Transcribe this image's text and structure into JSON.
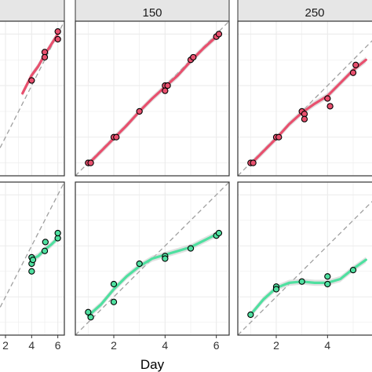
{
  "chart_data": {
    "type": "scatter",
    "xlabel": "Day",
    "x_ticks": [
      2,
      4,
      6
    ],
    "colors": {
      "red_series": "#e8506e",
      "green_series": "#4fe0a0",
      "strip_bg": "#e6e6e6",
      "reference_line": "#a0a0a0",
      "grid": "#ebebeb",
      "ribbon": "#c8c8c8"
    },
    "panels": [
      {
        "row": 0,
        "col": 0,
        "strip": "",
        "color_key": "red_series",
        "xlim": [
          0.5,
          6.5
        ],
        "ylim": [
          0.5,
          6.5
        ],
        "points": [
          [
            4,
            4.2
          ],
          [
            5,
            5.3
          ],
          [
            5,
            5.1
          ],
          [
            6,
            6.1
          ],
          [
            6,
            5.8
          ]
        ],
        "smooth": [
          [
            3.3,
            3.7
          ],
          [
            4,
            4.4
          ],
          [
            4.5,
            4.75
          ],
          [
            5,
            5.2
          ],
          [
            5.5,
            5.6
          ],
          [
            6,
            6.0
          ]
        ]
      },
      {
        "row": 0,
        "col": 1,
        "strip": "150",
        "color_key": "red_series",
        "xlim": [
          0.5,
          6.5
        ],
        "ylim": [
          0.5,
          6.5
        ],
        "points": [
          [
            1,
            1.0
          ],
          [
            1.1,
            1.0
          ],
          [
            2,
            2.0
          ],
          [
            2.1,
            2.0
          ],
          [
            3,
            3.0
          ],
          [
            4,
            4.0
          ],
          [
            4.1,
            4.0
          ],
          [
            4,
            3.8
          ],
          [
            5,
            5.0
          ],
          [
            5.1,
            5.1
          ],
          [
            6,
            5.9
          ],
          [
            6.1,
            6.0
          ]
        ],
        "smooth": [
          [
            1,
            0.95
          ],
          [
            1.5,
            1.45
          ],
          [
            2,
            1.95
          ],
          [
            2.5,
            2.45
          ],
          [
            3,
            3.0
          ],
          [
            3.5,
            3.5
          ],
          [
            4,
            3.95
          ],
          [
            4.5,
            4.4
          ],
          [
            5,
            4.95
          ],
          [
            5.5,
            5.45
          ],
          [
            6,
            5.9
          ]
        ]
      },
      {
        "row": 0,
        "col": 2,
        "strip": "250",
        "color_key": "red_series",
        "xlim": [
          0.5,
          6.5
        ],
        "ylim": [
          0.5,
          6.5
        ],
        "points": [
          [
            1,
            1.0
          ],
          [
            1.1,
            1.0
          ],
          [
            2,
            2.0
          ],
          [
            2.1,
            2.0
          ],
          [
            3,
            3.0
          ],
          [
            3.1,
            2.9
          ],
          [
            3.1,
            2.7
          ],
          [
            4,
            3.5
          ],
          [
            4.1,
            3.2
          ],
          [
            5,
            4.5
          ],
          [
            5.1,
            4.8
          ]
        ],
        "smooth": [
          [
            1,
            0.95
          ],
          [
            1.5,
            1.45
          ],
          [
            2,
            1.95
          ],
          [
            2.5,
            2.5
          ],
          [
            3,
            2.95
          ],
          [
            3.5,
            3.3
          ],
          [
            4,
            3.6
          ],
          [
            4.5,
            4.1
          ],
          [
            5,
            4.6
          ],
          [
            5.5,
            5.0
          ]
        ]
      },
      {
        "row": 1,
        "col": 0,
        "strip": "",
        "color_key": "green_series",
        "xlim": [
          0.5,
          6.5
        ],
        "ylim": [
          0.5,
          6.5
        ],
        "points": [
          [
            4,
            3.55
          ],
          [
            4,
            3.3
          ],
          [
            4,
            3.0
          ],
          [
            4.1,
            3.45
          ],
          [
            5,
            3.8
          ],
          [
            5.05,
            4.15
          ],
          [
            6,
            4.3
          ],
          [
            6,
            4.5
          ]
        ],
        "smooth": [
          [
            3.9,
            3.45
          ],
          [
            4.5,
            3.6
          ],
          [
            5,
            3.85
          ],
          [
            5.5,
            4.05
          ],
          [
            6,
            4.3
          ]
        ]
      },
      {
        "row": 1,
        "col": 1,
        "strip": "",
        "color_key": "green_series",
        "xlim": [
          0.5,
          6.5
        ],
        "ylim": [
          0.5,
          6.5
        ],
        "points": [
          [
            1,
            1.4
          ],
          [
            1.1,
            1.2
          ],
          [
            2,
            1.8
          ],
          [
            2,
            2.5
          ],
          [
            3,
            3.3
          ],
          [
            4,
            3.6
          ],
          [
            4,
            3.5
          ],
          [
            5,
            3.9
          ],
          [
            6,
            4.4
          ],
          [
            6.1,
            4.5
          ]
        ],
        "smooth": [
          [
            1,
            1.25
          ],
          [
            1.5,
            1.7
          ],
          [
            2,
            2.3
          ],
          [
            2.5,
            2.8
          ],
          [
            3,
            3.2
          ],
          [
            3.5,
            3.5
          ],
          [
            4,
            3.65
          ],
          [
            4.5,
            3.8
          ],
          [
            5,
            3.95
          ],
          [
            5.5,
            4.2
          ],
          [
            6,
            4.45
          ]
        ]
      },
      {
        "row": 1,
        "col": 2,
        "strip": "",
        "color_key": "green_series",
        "xlim": [
          0.5,
          6.5
        ],
        "ylim": [
          0.5,
          6.5
        ],
        "points": [
          [
            1,
            1.3
          ],
          [
            2,
            2.4
          ],
          [
            2,
            2.3
          ],
          [
            3,
            2.6
          ],
          [
            4,
            2.8
          ],
          [
            4,
            2.5
          ],
          [
            5,
            3.05
          ]
        ],
        "smooth": [
          [
            1,
            1.3
          ],
          [
            1.5,
            1.9
          ],
          [
            2,
            2.35
          ],
          [
            2.5,
            2.55
          ],
          [
            3,
            2.6
          ],
          [
            3.5,
            2.55
          ],
          [
            4,
            2.55
          ],
          [
            4.5,
            2.7
          ],
          [
            5,
            3.1
          ],
          [
            5.5,
            3.45
          ]
        ]
      }
    ]
  }
}
